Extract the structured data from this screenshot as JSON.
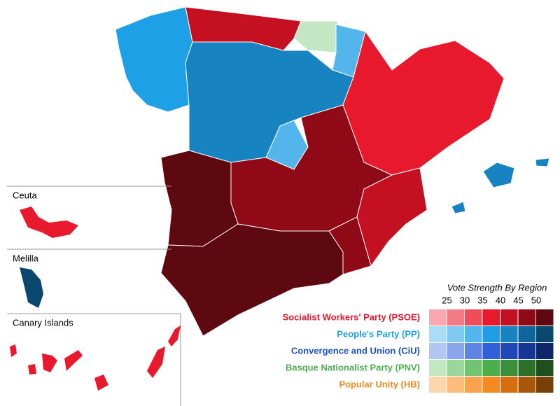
{
  "insets": [
    {
      "label": "Ceuta"
    },
    {
      "label": "Melilla"
    },
    {
      "label": "Canary Islands"
    }
  ],
  "legend": {
    "title": "Vote Strength By Region",
    "scale": [
      25,
      30,
      35,
      40,
      45,
      50
    ],
    "parties": [
      {
        "name": "Socialist Workers' Party (PSOE)",
        "color": "#e3192c",
        "swatches": [
          "#f7a8b0",
          "#f27a86",
          "#ee4d5c",
          "#e8192c",
          "#c41020",
          "#8f0a16",
          "#5e0810"
        ]
      },
      {
        "name": "People's Party (PP)",
        "color": "#1ea0e6",
        "swatches": [
          "#aadcf7",
          "#7fcaf2",
          "#52b6ec",
          "#1f9ee3",
          "#1783c0",
          "#10659a",
          "#0a4870"
        ]
      },
      {
        "name": "Convergence and Union (CiU)",
        "color": "#1a4fc7",
        "swatches": [
          "#b3c5f2",
          "#8aa5ec",
          "#5f84e4",
          "#2f5fdb",
          "#1f47b8",
          "#173592",
          "#10256a"
        ]
      },
      {
        "name": "Basque Nationalist Party (PNV)",
        "color": "#4caf50",
        "swatches": [
          "#c3e6c3",
          "#9bd69b",
          "#72c472",
          "#4caf4c",
          "#3a8f3a",
          "#2c702c",
          "#1e501e"
        ]
      },
      {
        "name": "Popular Unity (HB)",
        "color": "#f08a1e",
        "swatches": [
          "#fdd5ab",
          "#fbbc7c",
          "#f9a24d",
          "#f58a1f",
          "#d56f0d",
          "#a8570a",
          "#7a3f07"
        ]
      }
    ]
  }
}
